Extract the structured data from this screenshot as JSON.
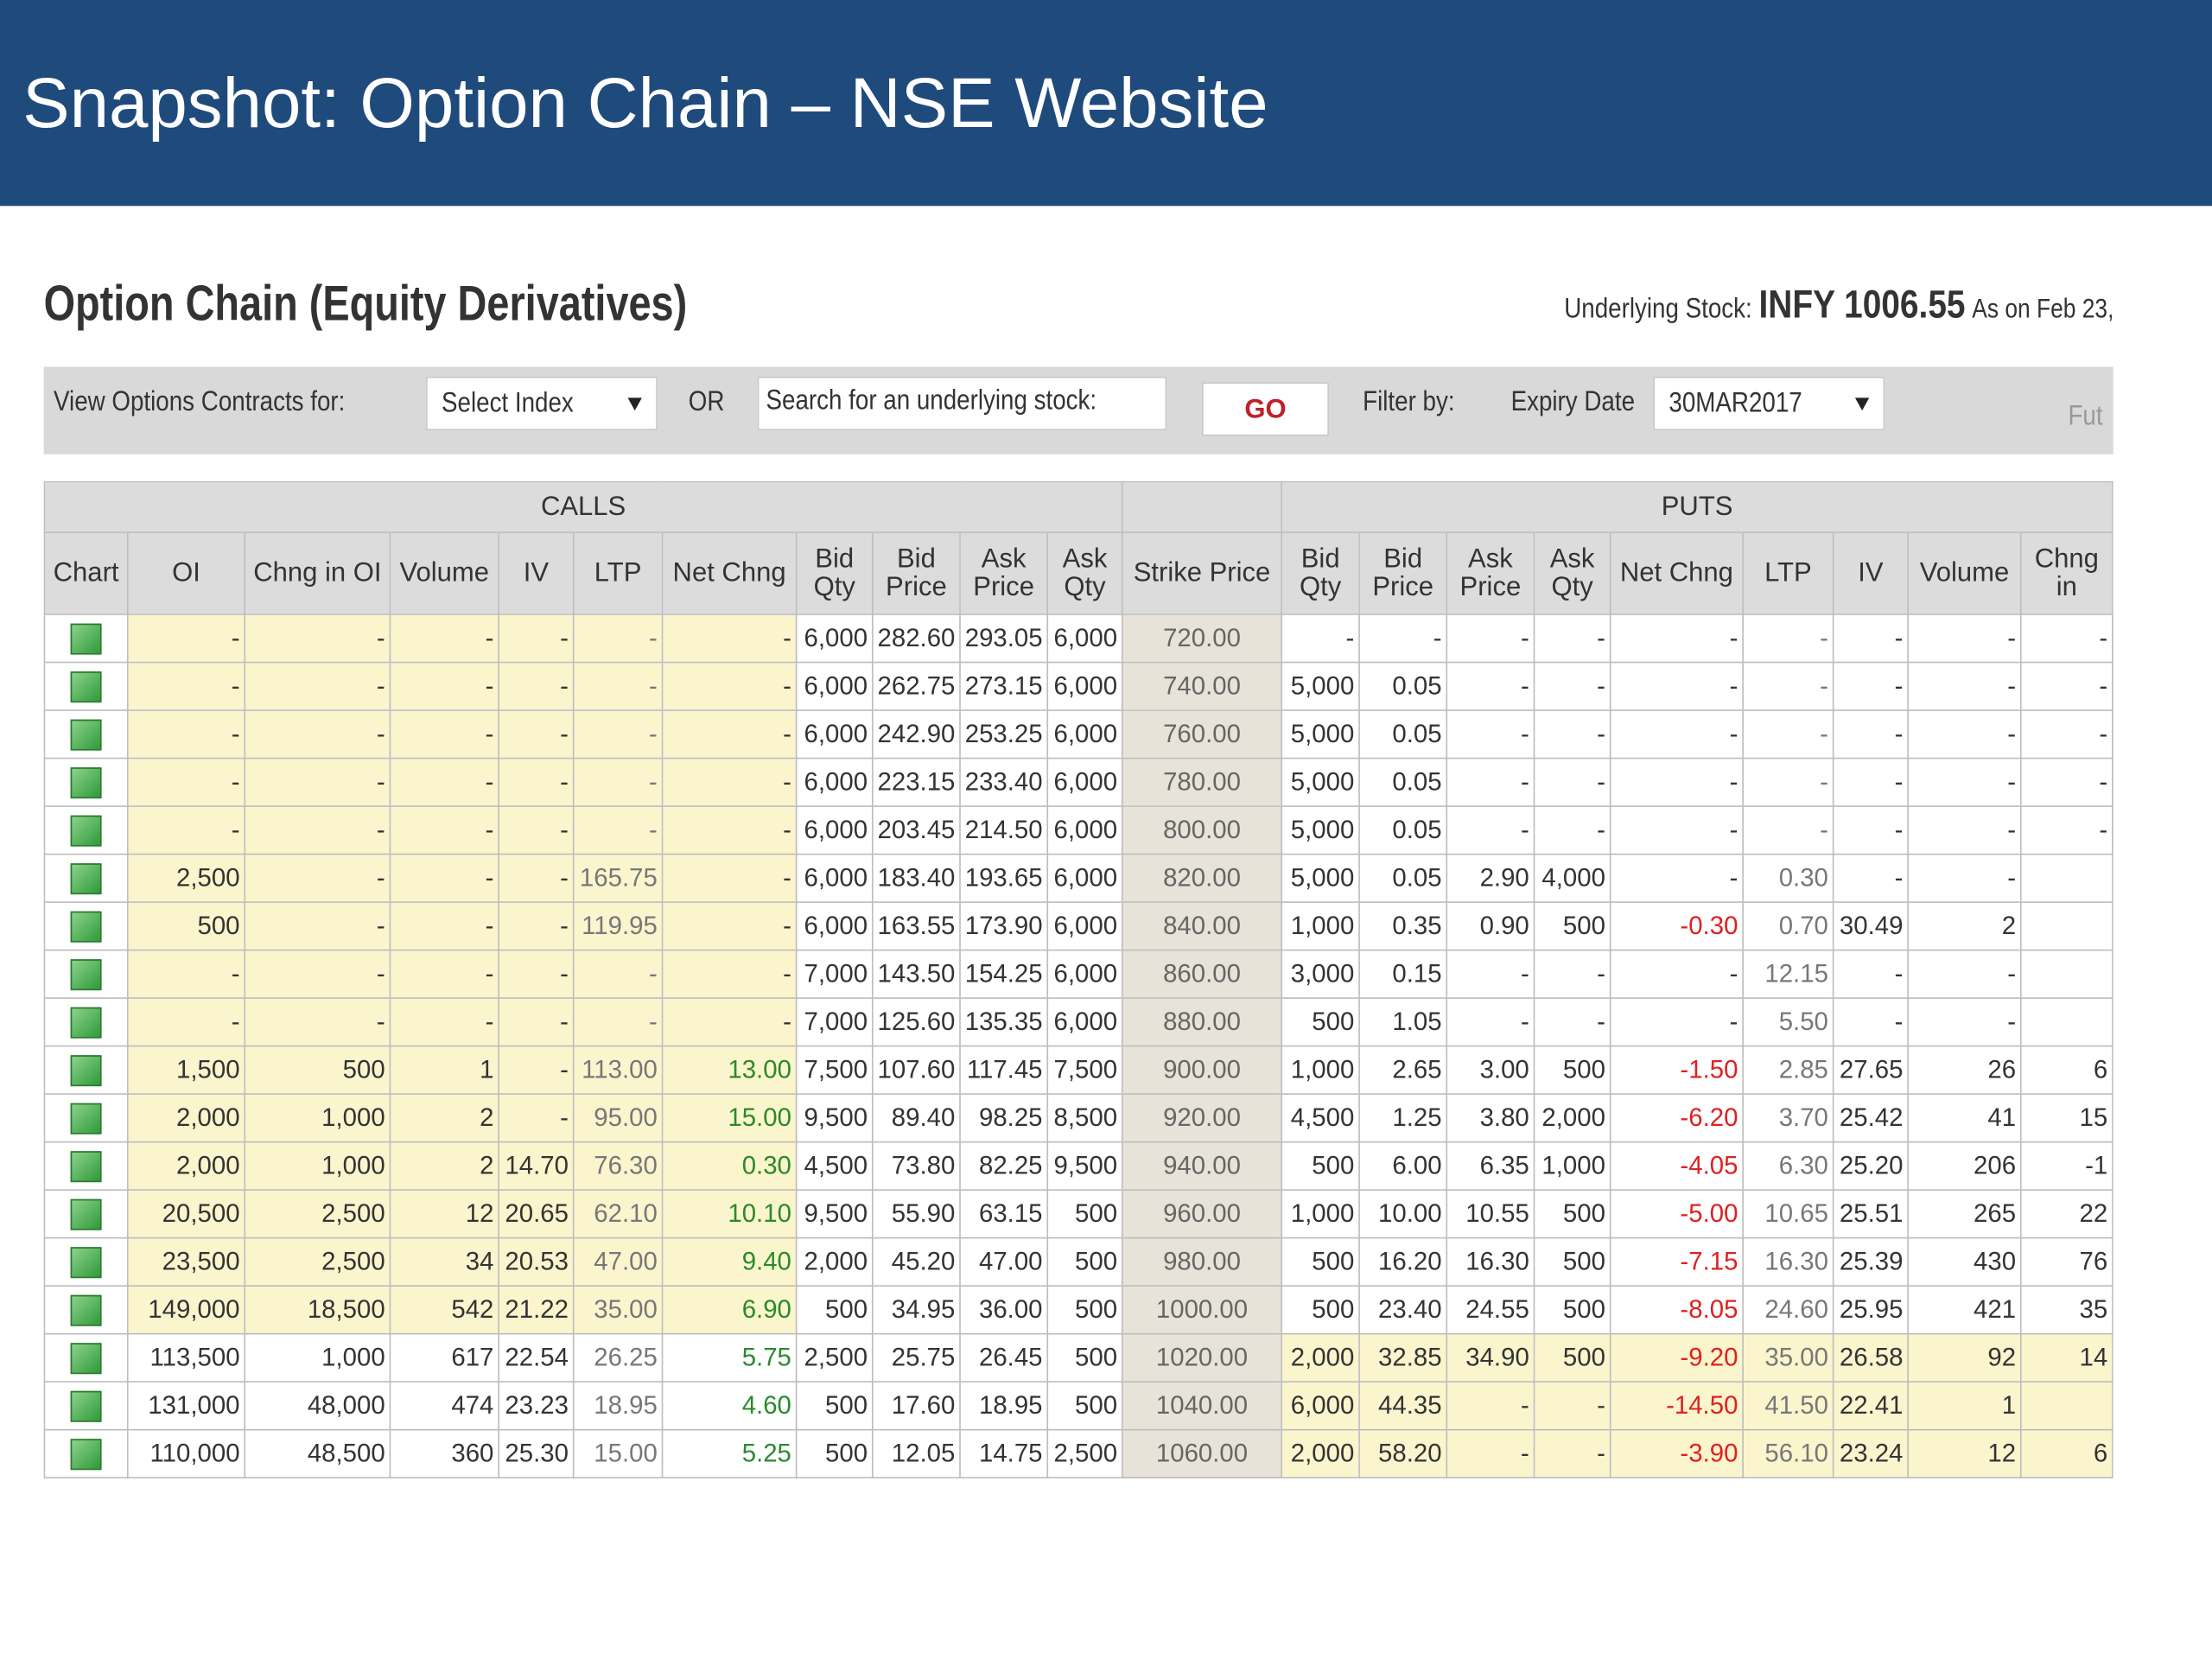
{
  "slide_title": "Snapshot: Option Chain – NSE Website",
  "page_title": "Option Chain (Equity Derivatives)",
  "underlying": {
    "label": "Underlying Stock:",
    "symbol": "INFY 1006.55",
    "as_on": "As on Feb 23,"
  },
  "controls": {
    "view_label": "View Options Contracts for:",
    "select_index": "Select Index",
    "or": "OR",
    "search_placeholder": "Search for an underlying stock:",
    "go": "GO",
    "filter_label": "Filter by:",
    "expiry_label": "Expiry Date",
    "expiry_value": "30MAR2017",
    "futures": "Fut"
  },
  "table": {
    "group_headers": [
      "CALLS",
      "PUTS"
    ],
    "columns": [
      "Chart",
      "OI",
      "Chng in OI",
      "Volume",
      "IV",
      "LTP",
      "Net Chng",
      "Bid Qty",
      "Bid Price",
      "Ask Price",
      "Ask Qty",
      "Strike Price",
      "Bid Qty",
      "Bid Price",
      "Ask Price",
      "Ask Qty",
      "Net Chng",
      "LTP",
      "IV",
      "Volume",
      "Chng in"
    ],
    "rows": [
      [
        "-",
        "-",
        "-",
        "-",
        "-",
        "-",
        "6,000",
        "282.60",
        "293.05",
        "6,000",
        "720.00",
        "-",
        "-",
        "-",
        "-",
        "-",
        "-",
        "-",
        "-",
        "-",
        null
      ],
      [
        "-",
        "-",
        "-",
        "-",
        "-",
        "-",
        "6,000",
        "262.75",
        "273.15",
        "6,000",
        "740.00",
        "5,000",
        "0.05",
        "-",
        "-",
        "-",
        "-",
        "-",
        "-",
        "-",
        null
      ],
      [
        "-",
        "-",
        "-",
        "-",
        "-",
        "-",
        "6,000",
        "242.90",
        "253.25",
        "6,000",
        "760.00",
        "5,000",
        "0.05",
        "-",
        "-",
        "-",
        "-",
        "-",
        "-",
        "-",
        null
      ],
      [
        "-",
        "-",
        "-",
        "-",
        "-",
        "-",
        "6,000",
        "223.15",
        "233.40",
        "6,000",
        "780.00",
        "5,000",
        "0.05",
        "-",
        "-",
        "-",
        "-",
        "-",
        "-",
        "-",
        null
      ],
      [
        "-",
        "-",
        "-",
        "-",
        "-",
        "-",
        "6,000",
        "203.45",
        "214.50",
        "6,000",
        "800.00",
        "5,000",
        "0.05",
        "-",
        "-",
        "-",
        "-",
        "-",
        "-",
        "-",
        null
      ],
      [
        "2,500",
        "-",
        "-",
        "-",
        "165.75",
        "-",
        "6,000",
        "183.40",
        "193.65",
        "6,000",
        "820.00",
        "5,000",
        "0.05",
        "2.90",
        "4,000",
        "-",
        "0.30",
        "-",
        "-",
        null
      ],
      [
        "500",
        "-",
        "-",
        "-",
        "119.95",
        "-",
        "6,000",
        "163.55",
        "173.90",
        "6,000",
        "840.00",
        "1,000",
        "0.35",
        "0.90",
        "500",
        "-0.30",
        "0.70",
        "30.49",
        "2",
        null
      ],
      [
        "-",
        "-",
        "-",
        "-",
        "-",
        "-",
        "7,000",
        "143.50",
        "154.25",
        "6,000",
        "860.00",
        "3,000",
        "0.15",
        "-",
        "-",
        "-",
        "12.15",
        "-",
        "-",
        null
      ],
      [
        "-",
        "-",
        "-",
        "-",
        "-",
        "-",
        "7,000",
        "125.60",
        "135.35",
        "6,000",
        "880.00",
        "500",
        "1.05",
        "-",
        "-",
        "-",
        "5.50",
        "-",
        "-",
        null
      ],
      [
        "1,500",
        "500",
        "1",
        "-",
        "113.00",
        "13.00",
        "7,500",
        "107.60",
        "117.45",
        "7,500",
        "900.00",
        "1,000",
        "2.65",
        "3.00",
        "500",
        "-1.50",
        "2.85",
        "27.65",
        "26",
        "6"
      ],
      [
        "2,000",
        "1,000",
        "2",
        "-",
        "95.00",
        "15.00",
        "9,500",
        "89.40",
        "98.25",
        "8,500",
        "920.00",
        "4,500",
        "1.25",
        "3.80",
        "2,000",
        "-6.20",
        "3.70",
        "25.42",
        "41",
        "15"
      ],
      [
        "2,000",
        "1,000",
        "2",
        "14.70",
        "76.30",
        "0.30",
        "4,500",
        "73.80",
        "82.25",
        "9,500",
        "940.00",
        "500",
        "6.00",
        "6.35",
        "1,000",
        "-4.05",
        "6.30",
        "25.20",
        "206",
        "-1"
      ],
      [
        "20,500",
        "2,500",
        "12",
        "20.65",
        "62.10",
        "10.10",
        "9,500",
        "55.90",
        "63.15",
        "500",
        "960.00",
        "1,000",
        "10.00",
        "10.55",
        "500",
        "-5.00",
        "10.65",
        "25.51",
        "265",
        "22"
      ],
      [
        "23,500",
        "2,500",
        "34",
        "20.53",
        "47.00",
        "9.40",
        "2,000",
        "45.20",
        "47.00",
        "500",
        "980.00",
        "500",
        "16.20",
        "16.30",
        "500",
        "-7.15",
        "16.30",
        "25.39",
        "430",
        "76"
      ],
      [
        "149,000",
        "18,500",
        "542",
        "21.22",
        "35.00",
        "6.90",
        "500",
        "34.95",
        "36.00",
        "500",
        "1000.00",
        "500",
        "23.40",
        "24.55",
        "500",
        "-8.05",
        "24.60",
        "25.95",
        "421",
        "35"
      ],
      [
        "113,500",
        "1,000",
        "617",
        "22.54",
        "26.25",
        "5.75",
        "2,500",
        "25.75",
        "26.45",
        "500",
        "1020.00",
        "2,000",
        "32.85",
        "34.90",
        "500",
        "-9.20",
        "35.00",
        "26.58",
        "92",
        "14"
      ],
      [
        "131,000",
        "48,000",
        "474",
        "23.23",
        "18.95",
        "4.60",
        "500",
        "17.60",
        "18.95",
        "500",
        "1040.00",
        "6,000",
        "44.35",
        "-",
        "-",
        "-14.50",
        "41.50",
        "22.41",
        "1",
        null
      ],
      [
        "110,000",
        "48,500",
        "360",
        "25.30",
        "15.00",
        "5.25",
        "500",
        "12.05",
        "14.75",
        "2,500",
        "1060.00",
        "2,000",
        "58.20",
        "-",
        "-",
        "-3.90",
        "56.10",
        "23.24",
        "12",
        "6"
      ]
    ]
  }
}
